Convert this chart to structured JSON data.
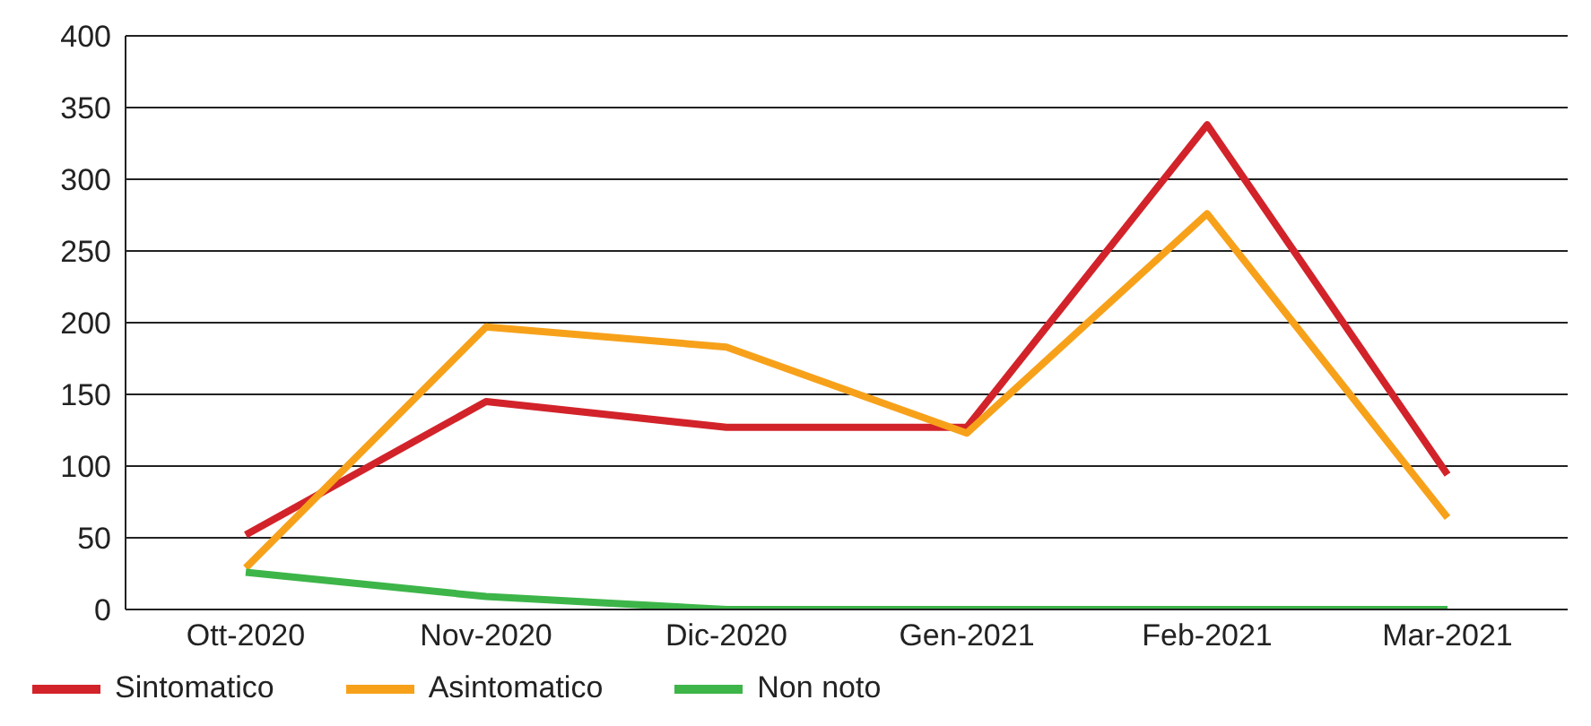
{
  "chart_data": {
    "type": "line",
    "categories": [
      "Ott-2020",
      "Nov-2020",
      "Dic-2020",
      "Gen-2021",
      "Feb-2021",
      "Mar-2021"
    ],
    "series": [
      {
        "name": "Sintomatico",
        "color": "#d2232a",
        "values": [
          52,
          145,
          127,
          127,
          338,
          94
        ]
      },
      {
        "name": "Asintomatico",
        "color": "#f7a11a",
        "values": [
          29,
          197,
          183,
          123,
          276,
          64
        ]
      },
      {
        "name": "Non noto",
        "color": "#3db549",
        "values": [
          26,
          9,
          0,
          0,
          0,
          0
        ]
      }
    ],
    "ylim": [
      0,
      400
    ],
    "yticks": [
      0,
      50,
      100,
      150,
      200,
      250,
      300,
      350,
      400
    ],
    "grid": "y",
    "legend": "bottom left",
    "marker": "none",
    "line_style": "solid"
  }
}
